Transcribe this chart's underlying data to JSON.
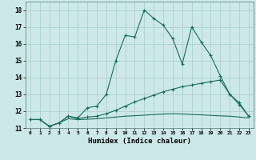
{
  "xlabel": "Humidex (Indice chaleur)",
  "bg_color": "#cce8e8",
  "grid_color": "#aacccc",
  "line_color": "#1a6b5a",
  "xlim": [
    -0.5,
    23.5
  ],
  "ylim": [
    11.0,
    18.5
  ],
  "yticks": [
    11,
    12,
    13,
    14,
    15,
    16,
    17,
    18
  ],
  "xticks": [
    0,
    1,
    2,
    3,
    4,
    5,
    6,
    7,
    8,
    9,
    10,
    11,
    12,
    13,
    14,
    15,
    16,
    17,
    18,
    19,
    20,
    21,
    22,
    23
  ],
  "series1_x": [
    0,
    1,
    2,
    3,
    4,
    5,
    6,
    7,
    8,
    9,
    10,
    11,
    12,
    13,
    14,
    15,
    16,
    17,
    18,
    19,
    20,
    21,
    22,
    23
  ],
  "series1_y": [
    11.5,
    11.5,
    11.1,
    11.3,
    11.7,
    11.6,
    12.2,
    12.3,
    13.0,
    15.0,
    16.5,
    16.4,
    18.0,
    17.5,
    17.1,
    16.3,
    14.8,
    17.0,
    16.1,
    15.3,
    14.1,
    13.0,
    12.5,
    11.7
  ],
  "series2_x": [
    0,
    1,
    2,
    3,
    4,
    5,
    6,
    7,
    8,
    9,
    10,
    11,
    12,
    13,
    14,
    15,
    16,
    17,
    18,
    19,
    20,
    21,
    22,
    23
  ],
  "series2_y": [
    11.5,
    11.5,
    11.1,
    11.3,
    11.7,
    11.55,
    11.65,
    11.7,
    11.85,
    12.05,
    12.3,
    12.55,
    12.75,
    12.95,
    13.15,
    13.3,
    13.45,
    13.55,
    13.65,
    13.75,
    13.85,
    13.0,
    12.4,
    11.7
  ],
  "series3_x": [
    0,
    1,
    2,
    3,
    4,
    5,
    6,
    7,
    8,
    9,
    10,
    11,
    12,
    13,
    14,
    15,
    16,
    17,
    18,
    19,
    20,
    21,
    22,
    23
  ],
  "series3_y": [
    11.5,
    11.5,
    11.1,
    11.3,
    11.55,
    11.5,
    11.52,
    11.55,
    11.6,
    11.65,
    11.7,
    11.73,
    11.76,
    11.8,
    11.83,
    11.85,
    11.83,
    11.8,
    11.78,
    11.75,
    11.72,
    11.7,
    11.65,
    11.6
  ]
}
